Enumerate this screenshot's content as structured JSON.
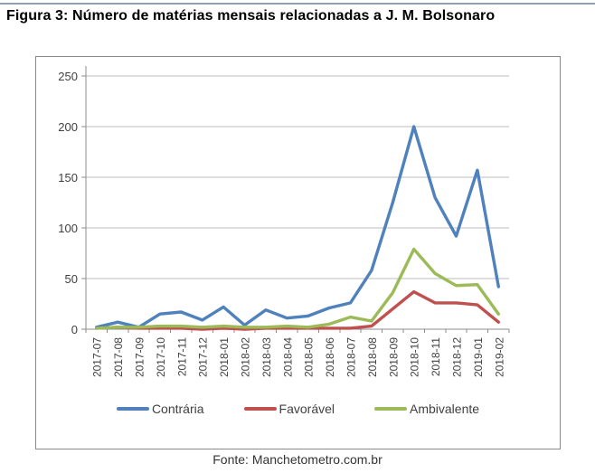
{
  "figure": {
    "title": "Figura 3: Número de matérias mensais relacionadas a J. M. Bolsonaro",
    "source": "Fonte: Manchetometro.com.br"
  },
  "chart_data": {
    "type": "line",
    "title": "Figura 3: Número de matérias mensais relacionadas a J. M. Bolsonaro",
    "xlabel": "",
    "ylabel": "",
    "categories": [
      "2017-07",
      "2017-08",
      "2017-09",
      "2017-10",
      "2017-11",
      "2017-12",
      "2018-01",
      "2018-02",
      "2018-03",
      "2018-04",
      "2018-05",
      "2018-06",
      "2018-07",
      "2018-08",
      "2018-09",
      "2018-10",
      "2018-11",
      "2018-12",
      "2019-01",
      "2019-02"
    ],
    "series": [
      {
        "name": "Contrária",
        "color": "#4F81BD",
        "values": [
          2,
          7,
          2,
          15,
          17,
          9,
          22,
          4,
          19,
          11,
          13,
          21,
          26,
          58,
          125,
          200,
          130,
          92,
          157,
          42
        ]
      },
      {
        "name": "Favorável",
        "color": "#C0504D",
        "values": [
          1,
          2,
          1,
          1,
          1,
          0,
          1,
          0,
          1,
          1,
          1,
          1,
          1,
          3,
          20,
          37,
          26,
          26,
          24,
          7
        ]
      },
      {
        "name": "Ambivalente",
        "color": "#9BBB59",
        "values": [
          1,
          2,
          2,
          3,
          3,
          2,
          3,
          2,
          2,
          3,
          2,
          5,
          12,
          8,
          36,
          79,
          55,
          43,
          44,
          15
        ]
      }
    ],
    "ylim": [
      0,
      250
    ],
    "ytick_interval": 50,
    "ytick_labels": [
      "0",
      "50",
      "100",
      "150",
      "200",
      "250"
    ],
    "grid": "horizontal",
    "legend_position": "bottom",
    "colors": {
      "gridline": "#bdbdbd",
      "axis": "#8c8c8c",
      "tick_label": "#404040"
    }
  }
}
